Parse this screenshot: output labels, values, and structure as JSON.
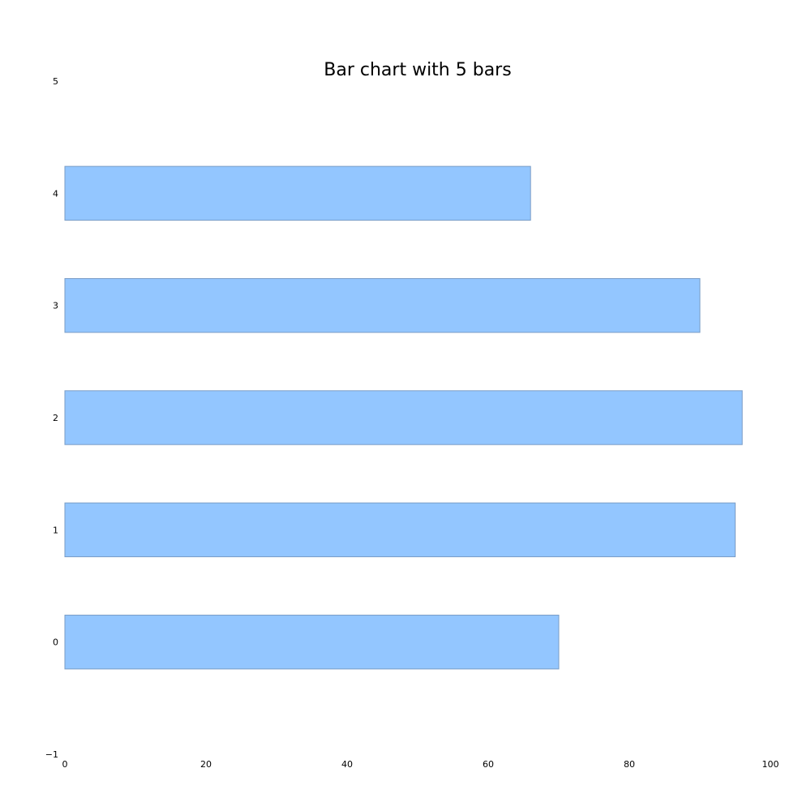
{
  "chart_data": {
    "type": "bar",
    "orientation": "horizontal",
    "title": "Bar chart with 5 bars",
    "xlabel": "",
    "ylabel": "",
    "categories": [
      0,
      1,
      2,
      3,
      4
    ],
    "values": [
      70,
      95,
      96,
      90,
      66
    ],
    "xlim": [
      0,
      100
    ],
    "ylim": [
      -1,
      5
    ],
    "x_ticks": [
      "0",
      "20",
      "40",
      "60",
      "80",
      "100"
    ],
    "y_ticks": [
      "−1",
      "0",
      "1",
      "2",
      "3",
      "4",
      "5"
    ],
    "grid": false,
    "legend": "none",
    "bar_color": "#93c6ff",
    "bar_edge_color": "#7a9cc6"
  }
}
